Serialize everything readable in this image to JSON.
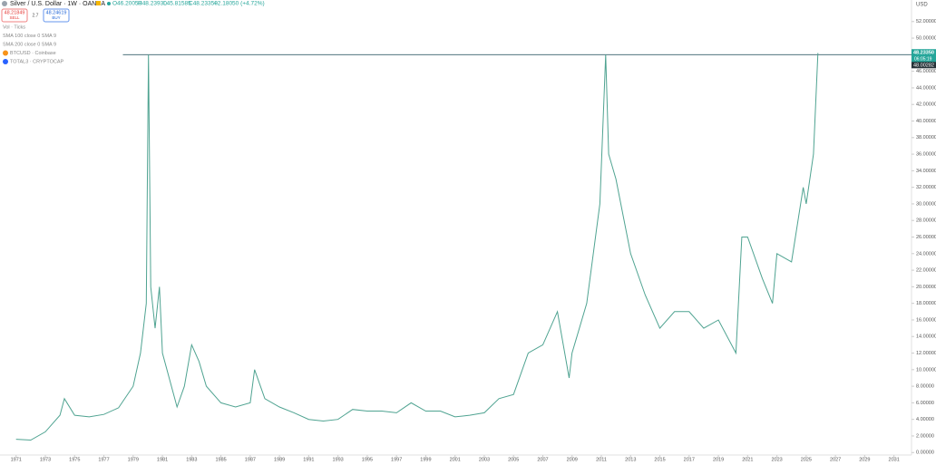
{
  "chart_data": {
    "type": "line",
    "title": "Silver / U.S. Dollar · 1W · OANDA",
    "ohlc": [
      "O46.20050",
      "H48.23930",
      "L45.81585",
      "C48.23350",
      "+2.18050 (+4.72%)"
    ],
    "sell": {
      "price": "48.21849",
      "label": "SELL"
    },
    "buy": {
      "price": "48.24619",
      "label": "BUY"
    },
    "spread": "2.7",
    "indicators": [
      "Vol · Ticks",
      "SMA 100 close 0 SMA 9",
      "SMA 200 close 0 SMA 9",
      "BTCUSD · Coinbase",
      "TOTAL3 · CRYPTOCAP"
    ],
    "currency": "USD",
    "last_price": {
      "value": 48.2335,
      "label": "48.23350"
    },
    "countdown": "06:05:19",
    "hline": 48.00282,
    "x": [
      1971,
      1972,
      1973,
      1974,
      1974.3,
      1975,
      1976,
      1977,
      1978,
      1979,
      1979.5,
      1979.9,
      1980.05,
      1980.2,
      1980.5,
      1980.8,
      1981,
      1982,
      1982.5,
      1983,
      1983.5,
      1984,
      1985,
      1986,
      1987,
      1987.3,
      1988,
      1989,
      1990,
      1991,
      1992,
      1993,
      1994,
      1995,
      1996,
      1997,
      1998,
      1999,
      2000,
      2001,
      2002,
      2003,
      2004,
      2005,
      2006,
      2007,
      2008,
      2008.8,
      2009,
      2010,
      2010.9,
      2011.3,
      2011.5,
      2012,
      2013,
      2014,
      2015,
      2016,
      2017,
      2018,
      2019,
      2020.2,
      2020.6,
      2021,
      2022,
      2022.7,
      2023,
      2024,
      2024.8,
      2025,
      2025.5,
      2025.8
    ],
    "series": [
      {
        "color": "#4fa391",
        "values": [
          1.6,
          1.5,
          2.5,
          4.5,
          6.5,
          4.5,
          4.3,
          4.6,
          5.4,
          8,
          12,
          18,
          48,
          20,
          15,
          20,
          12,
          5.5,
          8,
          13,
          11,
          8,
          6,
          5.5,
          6,
          10,
          6.5,
          5.5,
          4.8,
          4,
          3.8,
          4,
          5.2,
          5,
          5,
          4.8,
          6,
          5,
          5,
          4.3,
          4.5,
          4.8,
          6.5,
          7,
          12,
          13,
          17,
          9,
          12,
          18,
          30,
          48,
          36,
          33,
          24,
          19,
          15,
          17,
          17,
          15,
          16,
          12,
          26,
          26,
          21,
          18,
          24,
          23,
          32,
          30,
          36,
          48.2
        ]
      }
    ],
    "xlim": [
      1969.9,
      2032.2
    ],
    "ylim": [
      -0.3,
      54.6
    ],
    "xticks": [
      1971,
      1973,
      1975,
      1977,
      1979,
      1981,
      1983,
      1985,
      1987,
      1989,
      1991,
      1993,
      1995,
      1997,
      1999,
      2001,
      2003,
      2005,
      2007,
      2009,
      2011,
      2013,
      2015,
      2017,
      2019,
      2021,
      2023,
      2025,
      2027,
      2029,
      2031
    ],
    "yticks": [
      {
        "value": 0,
        "label": "0.00000"
      },
      {
        "value": 2,
        "label": "2.00000"
      },
      {
        "value": 4,
        "label": "4.00000"
      },
      {
        "value": 6,
        "label": "6.00000"
      },
      {
        "value": 8,
        "label": "8.00000"
      },
      {
        "value": 10,
        "label": "10.00000"
      },
      {
        "value": 12,
        "label": "12.00000"
      },
      {
        "value": 14,
        "label": "14.00000"
      },
      {
        "value": 16,
        "label": "16.00000"
      },
      {
        "value": 18,
        "label": "18.00000"
      },
      {
        "value": 20,
        "label": "20.00000"
      },
      {
        "value": 22,
        "label": "22.00000"
      },
      {
        "value": 24,
        "label": "24.00000"
      },
      {
        "value": 26,
        "label": "26.00000"
      },
      {
        "value": 28,
        "label": "28.00000"
      },
      {
        "value": 30,
        "label": "30.00000"
      },
      {
        "value": 32,
        "label": "32.00000"
      },
      {
        "value": 34,
        "label": "34.00000"
      },
      {
        "value": 36,
        "label": "36.00000"
      },
      {
        "value": 38,
        "label": "38.00000"
      },
      {
        "value": 40,
        "label": "40.00000"
      },
      {
        "value": 42,
        "label": "42.00000"
      },
      {
        "value": 44,
        "label": "44.00000"
      },
      {
        "value": 46,
        "label": "46.00000"
      },
      {
        "value": 48,
        "label": "48.00000"
      },
      {
        "value": 50,
        "label": "50.00000"
      },
      {
        "value": 52,
        "label": "52.00000"
      }
    ]
  }
}
